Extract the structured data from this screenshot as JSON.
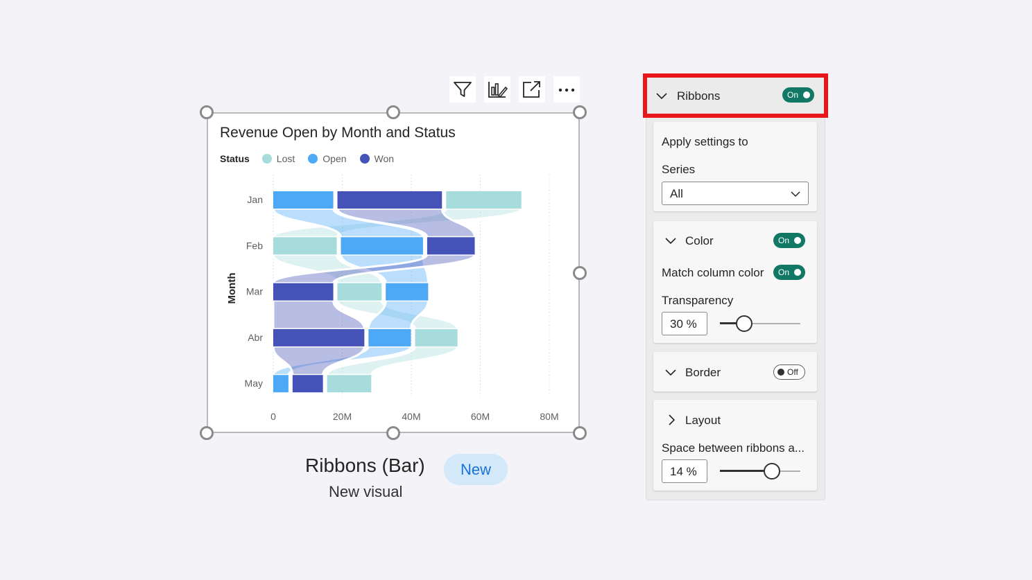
{
  "toolbar": {
    "items": [
      {
        "name": "filter-icon"
      },
      {
        "name": "format-visual-icon"
      },
      {
        "name": "focus-mode-icon"
      },
      {
        "name": "more-options-icon"
      }
    ]
  },
  "chart": {
    "title": "Revenue Open by Month and Status",
    "legend_title": "Status",
    "legend": [
      {
        "label": "Lost",
        "color": "#a6dcdb"
      },
      {
        "label": "Open",
        "color": "#4da8f6"
      },
      {
        "label": "Won",
        "color": "#4552b8"
      }
    ],
    "y_axis_label": "Month"
  },
  "chart_data": {
    "type": "bar",
    "subtype": "ribbon",
    "orientation": "horizontal",
    "title": "Revenue Open by Month and Status",
    "ylabel": "Month",
    "xlabel": "",
    "categories": [
      "Jan",
      "Feb",
      "Mar",
      "Abr",
      "May"
    ],
    "x_ticks": [
      "0",
      "20M",
      "40M",
      "60M",
      "80M"
    ],
    "xlim": [
      0,
      80000000
    ],
    "grid": true,
    "legend_position": "top-left",
    "series": [
      {
        "name": "Lost",
        "color": "#a6dcdb",
        "values": [
          23000000,
          19000000,
          14000000,
          13500000,
          14000000
        ]
      },
      {
        "name": "Open",
        "color": "#4da8f6",
        "values": [
          18000000,
          25000000,
          13500000,
          13500000,
          5000000
        ]
      },
      {
        "name": "Won",
        "color": "#4552b8",
        "values": [
          31500000,
          15000000,
          18000000,
          27000000,
          10000000
        ]
      }
    ],
    "stack_order": [
      [
        "Open",
        "Won",
        "Lost"
      ],
      [
        "Lost",
        "Open",
        "Won"
      ],
      [
        "Won",
        "Lost",
        "Open"
      ],
      [
        "Won",
        "Open",
        "Lost"
      ],
      [
        "Open",
        "Won",
        "Lost"
      ]
    ]
  },
  "caption": {
    "title": "Ribbons (Bar)",
    "badge": "New",
    "subtitle": "New visual"
  },
  "pane": {
    "ribbons": {
      "label": "Ribbons",
      "toggle": "On"
    },
    "apply": {
      "title": "Apply settings to",
      "series_label": "Series",
      "series_value": "All"
    },
    "color": {
      "label": "Color",
      "toggle": "On",
      "match_label": "Match column color",
      "match_toggle": "On",
      "transparency_label": "Transparency",
      "transparency_value": "30 %",
      "transparency_level": 30
    },
    "border": {
      "label": "Border",
      "toggle": "Off"
    },
    "layout": {
      "label": "Layout",
      "space_label": "Space between ribbons a...",
      "space_value": "14 %",
      "space_level": 65
    }
  }
}
